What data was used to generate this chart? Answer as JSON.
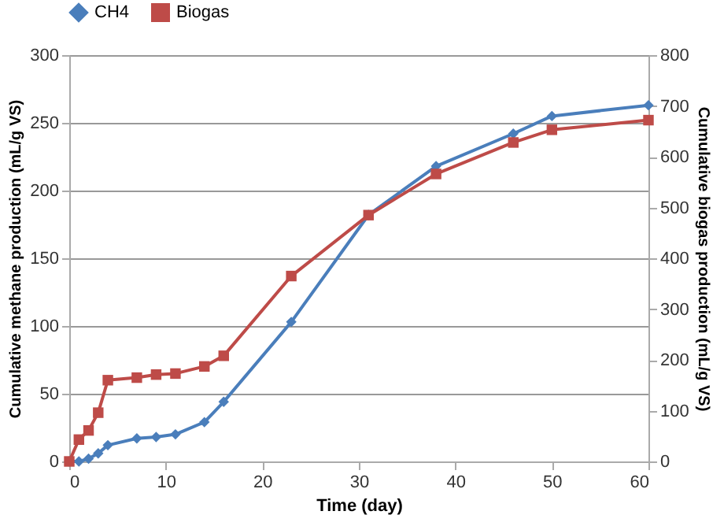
{
  "chart_data": {
    "type": "line",
    "xlabel": "Time (day)",
    "ylabel": "Cumulative methane production (mL/g VS)",
    "y2label": "Cumulative biogas production (mL/g VS)",
    "x": [
      0,
      1,
      2,
      3,
      4,
      7,
      9,
      11,
      14,
      16,
      23,
      31,
      38,
      46,
      50,
      60
    ],
    "series": [
      {
        "name": "CH4",
        "color": "#4a7ebb",
        "marker": "diamond",
        "values": [
          0,
          0,
          2,
          6,
          12,
          17,
          18,
          20,
          29,
          44,
          103,
          182,
          218,
          242,
          255,
          263
        ]
      },
      {
        "name": "Biogas",
        "color": "#be4b48",
        "marker": "square",
        "axis": "y2",
        "values": [
          0,
          43,
          61,
          96,
          160,
          165,
          171,
          173,
          187,
          208,
          365,
          485,
          566,
          628,
          653,
          672
        ]
      }
    ],
    "xlim": [
      0,
      60
    ],
    "xticks": [
      0,
      10,
      20,
      30,
      40,
      50,
      60
    ],
    "ylim": [
      0,
      300
    ],
    "yticks": [
      0,
      50,
      100,
      150,
      200,
      250,
      300
    ],
    "y2lim": [
      0,
      800
    ],
    "y2ticks": [
      0,
      100,
      200,
      300,
      400,
      500,
      600,
      700,
      800
    ],
    "grid": "y",
    "legend": "top",
    "line_style": "solid"
  }
}
